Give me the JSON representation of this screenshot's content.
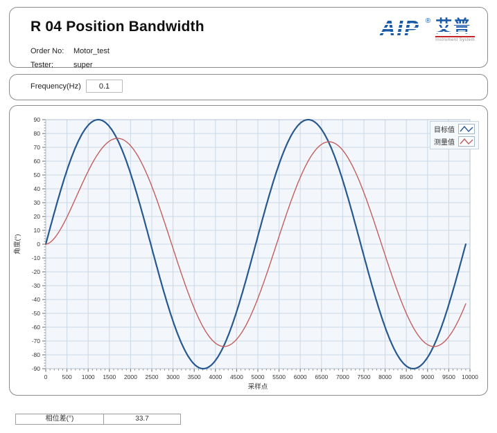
{
  "header": {
    "title": "R 04 Position Bandwidth",
    "order_no_label": "Order No:",
    "order_no_value": "Motor_test",
    "tester_label": "Tester:",
    "tester_value": "super"
  },
  "logo": {
    "brand": "AIP",
    "reg_mark": "®",
    "brand_cn": "艾普",
    "caption": "Instrument System",
    "brand_color": "#1a5aa8",
    "caption_rule_color": "#c42424"
  },
  "frequency": {
    "label": "Frequency(Hz)",
    "value": "0.1"
  },
  "chart_data": {
    "type": "line",
    "title": "",
    "xlabel": "采样点",
    "ylabel": "角度(°)",
    "xlim": [
      0,
      10000
    ],
    "ylim": [
      -90,
      90
    ],
    "x_tick_step": 500,
    "y_tick_step": 10,
    "x_minor_step": 100,
    "y_minor_step": 2,
    "grid": true,
    "legend_position": "top-right",
    "plot_bg": "#f3f6fa",
    "grid_color": "#cbd8e6",
    "border_color": "#b3c2d1",
    "tick_color": "#666666",
    "label_color": "#333333",
    "series": [
      {
        "name": "目标值",
        "color": "#27588e",
        "stroke_width": 2.2,
        "waveform": "sine",
        "amplitude": 90,
        "period": 4950,
        "phase_shift_samples": 0,
        "transient_amplitude": 0,
        "transient_tau": 1,
        "x_start": 0,
        "x_end": 9900,
        "key_points": "0 at x=0; +90 at x≈1240 and ≈6190; -90 at x≈3710 and ≈8660; 0 at x=9900"
      },
      {
        "name": "测量值",
        "color": "#c25e5e",
        "stroke_width": 1.4,
        "waveform": "sine",
        "amplitude": 74,
        "period": 4950,
        "phase_shift_samples": 490,
        "transient_amplitude": 43,
        "transient_tau": 600,
        "x_start": 0,
        "x_end": 9900,
        "key_points": "0 at x=0; ≈+75 at x≈1700 and ≈6650; ≈-72 at x≈4230 and ≈9180; ≈-42 at x=9900"
      }
    ]
  },
  "footer_table": {
    "label": "相位差(°)",
    "value": "33.7"
  }
}
